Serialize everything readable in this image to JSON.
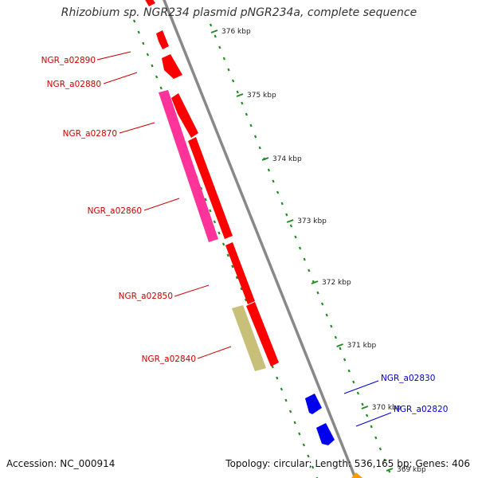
{
  "title": "Rhizobium sp. NGR234 plasmid pNGR234a, complete sequence",
  "footer": {
    "accession": "Accession: NC_000914",
    "summary": "Topology: circular; Length: 536,165 bp; Genes: 406"
  },
  "colors": {
    "reverse_gene": "#ff0000",
    "forward_gene": "#0000ee",
    "pink_gene": "#ff3399",
    "khaki_gene": "#c8bf78",
    "orange_gene": "#ff9900",
    "backbone": "#888888",
    "tick_dots": "#228b22",
    "reverse_label": "#cc0000",
    "forward_label": "#0000cc"
  },
  "ticks": [
    "376 kbp",
    "375 kbp",
    "374 kbp",
    "373 kbp",
    "372 kbp",
    "371 kbp",
    "370 kbp",
    "369 kbp"
  ],
  "labels": [
    {
      "id": "NGR_a02890",
      "text": "NGR_a02890",
      "strand": "reverse"
    },
    {
      "id": "NGR_a02880",
      "text": "NGR_a02880",
      "strand": "reverse"
    },
    {
      "id": "NGR_a02870",
      "text": "NGR_a02870",
      "strand": "reverse"
    },
    {
      "id": "NGR_a02860",
      "text": "NGR_a02860",
      "strand": "reverse"
    },
    {
      "id": "NGR_a02850",
      "text": "NGR_a02850",
      "strand": "reverse"
    },
    {
      "id": "NGR_a02840",
      "text": "NGR_a02840",
      "strand": "reverse"
    },
    {
      "id": "NGR_a02830",
      "text": "NGR_a02830",
      "strand": "forward"
    },
    {
      "id": "NGR_a02820",
      "text": "NGR_a02820",
      "strand": "forward"
    }
  ]
}
